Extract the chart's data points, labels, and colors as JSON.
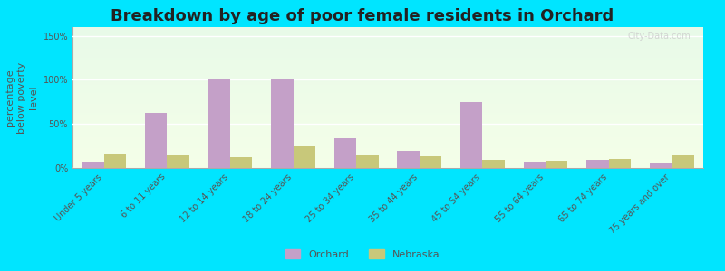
{
  "title": "Breakdown by age of poor female residents in Orchard",
  "categories": [
    "Under 5 years",
    "6 to 11 years",
    "12 to 14 years",
    "18 to 24 years",
    "25 to 34 years",
    "35 to 44 years",
    "45 to 54 years",
    "55 to 64 years",
    "65 to 74 years",
    "75 years and over"
  ],
  "orchard_values": [
    7,
    63,
    100,
    100,
    34,
    20,
    75,
    7,
    9,
    6
  ],
  "nebraska_values": [
    16,
    14,
    12,
    25,
    14,
    13,
    9,
    8,
    10,
    14
  ],
  "orchard_color": "#c4a0c8",
  "nebraska_color": "#c8c87a",
  "bar_width": 0.35,
  "ylabel": "percentage\nbelow poverty\nlevel",
  "ylim": [
    0,
    160
  ],
  "yticks": [
    0,
    50,
    100,
    150
  ],
  "ytick_labels": [
    "0%",
    "50%",
    "100%",
    "150%"
  ],
  "outer_bg": "#00e5ff",
  "title_fontsize": 13,
  "axis_label_fontsize": 8,
  "tick_fontsize": 7,
  "legend_labels": [
    "Orchard",
    "Nebraska"
  ],
  "watermark": "City-Data.com"
}
